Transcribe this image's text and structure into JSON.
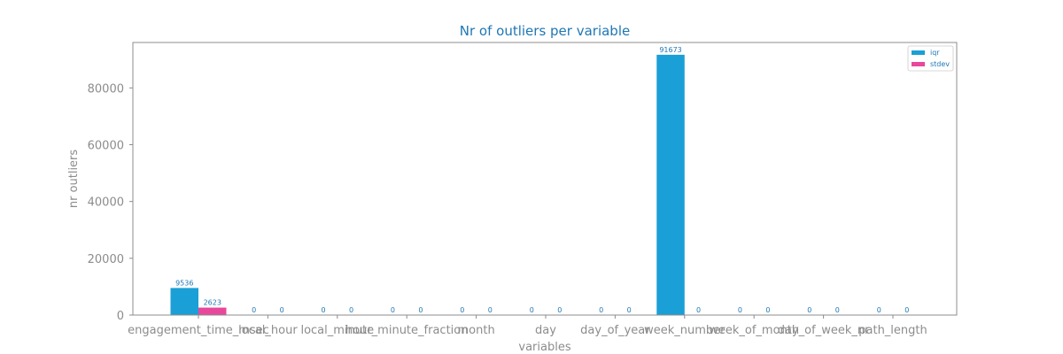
{
  "chart_data": {
    "type": "bar",
    "title": "Nr of outliers per variable",
    "xlabel": "variables",
    "ylabel": "nr outliers",
    "ylim": [
      0,
      96000
    ],
    "yticks": [
      0,
      20000,
      40000,
      60000,
      80000
    ],
    "grid": false,
    "legend_position": "top-right",
    "categories": [
      "engagement_time_msec",
      "local_hour",
      "local_minute",
      "hour_minute_fraction",
      "month",
      "day",
      "day_of_year",
      "week_number",
      "week_of_month",
      "day_of_week_nr",
      "path_length"
    ],
    "series": [
      {
        "name": "iqr",
        "color": "#1a9fd6",
        "values": [
          9536,
          0,
          0,
          0,
          0,
          0,
          0,
          91673,
          0,
          0,
          0
        ]
      },
      {
        "name": "stdev",
        "color": "#e8489b",
        "values": [
          2623,
          0,
          0,
          0,
          0,
          0,
          0,
          0,
          0,
          0,
          0
        ]
      }
    ]
  }
}
